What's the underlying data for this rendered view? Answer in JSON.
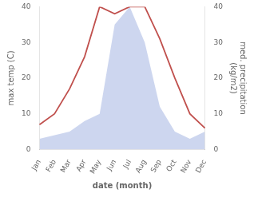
{
  "chart_data": {
    "type": "line",
    "categories": [
      "Jan",
      "Feb",
      "Mar",
      "Apr",
      "May",
      "Jun",
      "Jul",
      "Aug",
      "Sep",
      "Oct",
      "Nov",
      "Dec"
    ],
    "series": [
      {
        "color": "#c0504d",
        "values": [
          7,
          10,
          17,
          26,
          40,
          38,
          40,
          40,
          31,
          20,
          10,
          6
        ]
      },
      {
        "type": "area",
        "axis": "y2",
        "color": "#b8c4e8",
        "values": [
          3,
          4,
          5,
          8,
          10,
          35,
          40,
          30,
          12,
          5,
          3,
          5
        ]
      }
    ],
    "xlabel": "date (month)",
    "ylabel": "max temp (C)",
    "y2label": "med. precipitation\n(kg/m2)",
    "ylim": [
      0,
      40
    ],
    "yticks": [
      0,
      10,
      20,
      30,
      40
    ],
    "y2lim": [
      0,
      40
    ],
    "y2ticks": [
      0,
      10,
      20,
      30,
      40
    ],
    "grid": false
  }
}
